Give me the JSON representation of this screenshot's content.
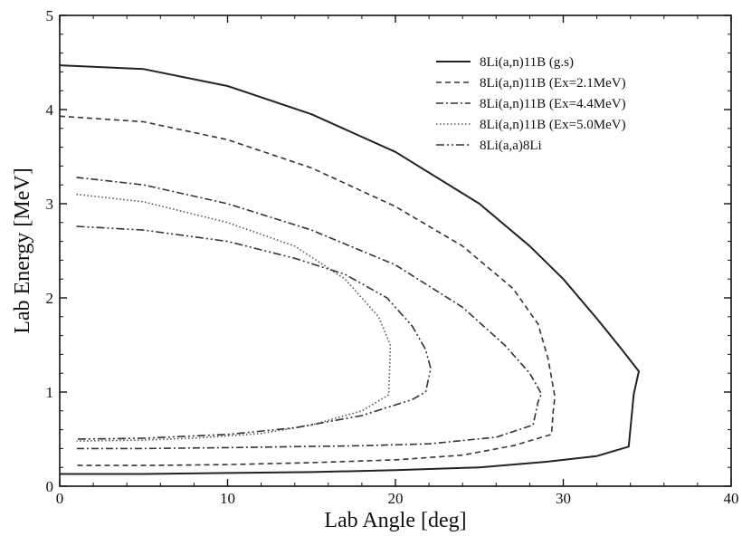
{
  "chart_data": {
    "type": "line",
    "title": "",
    "xlabel": "Lab Angle [deg]",
    "ylabel": "Lab Energy [MeV]",
    "xlim": [
      0,
      40
    ],
    "ylim": [
      0,
      5
    ],
    "xticks": [
      "0",
      "10",
      "20",
      "30",
      "40"
    ],
    "yticks": [
      "0",
      "1",
      "2",
      "3",
      "4",
      "5"
    ],
    "grid": false,
    "legend_position": "top-right",
    "series": [
      {
        "name": "8Li(a,n)11B (g.s)",
        "style": "solid",
        "color": "#222222",
        "points": [
          [
            0,
            4.47
          ],
          [
            5,
            4.43
          ],
          [
            10,
            4.25
          ],
          [
            15,
            3.95
          ],
          [
            20,
            3.55
          ],
          [
            25,
            3.0
          ],
          [
            28,
            2.55
          ],
          [
            30,
            2.2
          ],
          [
            32,
            1.78
          ],
          [
            33.5,
            1.45
          ],
          [
            34.5,
            1.22
          ],
          [
            34.2,
            0.98
          ],
          [
            33.9,
            0.42
          ],
          [
            32,
            0.32
          ],
          [
            29,
            0.26
          ],
          [
            25,
            0.2
          ],
          [
            20,
            0.17
          ],
          [
            15,
            0.15
          ],
          [
            10,
            0.14
          ],
          [
            5,
            0.13
          ],
          [
            0,
            0.13
          ]
        ]
      },
      {
        "name": "8Li(a,n)11B (Ex=2.1MeV)",
        "style": "dashed",
        "color": "#333333",
        "points": [
          [
            0,
            3.93
          ],
          [
            5,
            3.87
          ],
          [
            10,
            3.68
          ],
          [
            15,
            3.38
          ],
          [
            20,
            2.97
          ],
          [
            24,
            2.55
          ],
          [
            27,
            2.1
          ],
          [
            28.5,
            1.72
          ],
          [
            29.1,
            1.35
          ],
          [
            29.5,
            0.95
          ],
          [
            29.4,
            0.8
          ],
          [
            29.3,
            0.55
          ],
          [
            27,
            0.43
          ],
          [
            24,
            0.33
          ],
          [
            20,
            0.28
          ],
          [
            15,
            0.25
          ],
          [
            10,
            0.23
          ],
          [
            5,
            0.22
          ],
          [
            1,
            0.22
          ]
        ]
      },
      {
        "name": "8Li(a,n)11B (Ex=4.4MeV)",
        "style": "dash-dot",
        "color": "#333333",
        "points": [
          [
            1,
            3.28
          ],
          [
            5,
            3.2
          ],
          [
            10,
            3.0
          ],
          [
            15,
            2.72
          ],
          [
            20,
            2.35
          ],
          [
            24,
            1.9
          ],
          [
            26.5,
            1.5
          ],
          [
            28,
            1.2
          ],
          [
            28.7,
            0.98
          ],
          [
            28.5,
            0.9
          ],
          [
            28.2,
            0.65
          ],
          [
            26,
            0.52
          ],
          [
            22,
            0.45
          ],
          [
            18,
            0.43
          ],
          [
            14,
            0.42
          ],
          [
            10,
            0.41
          ],
          [
            5,
            0.4
          ],
          [
            1,
            0.4
          ]
        ]
      },
      {
        "name": "8Li(a,n)11B (Ex=5.0MeV)",
        "style": "dotted",
        "color": "#555555",
        "points": [
          [
            1,
            3.1
          ],
          [
            5,
            3.02
          ],
          [
            10,
            2.8
          ],
          [
            14,
            2.55
          ],
          [
            17,
            2.2
          ],
          [
            19,
            1.8
          ],
          [
            19.7,
            1.5
          ],
          [
            19.6,
            0.97
          ],
          [
            18,
            0.8
          ],
          [
            15,
            0.65
          ],
          [
            12,
            0.56
          ],
          [
            8,
            0.51
          ],
          [
            5,
            0.49
          ],
          [
            1,
            0.48
          ]
        ]
      },
      {
        "name": "8Li(a,a)8Li",
        "style": "dash-dot-dot",
        "color": "#333333",
        "points": [
          [
            1,
            2.76
          ],
          [
            5,
            2.72
          ],
          [
            10,
            2.6
          ],
          [
            14,
            2.42
          ],
          [
            17,
            2.25
          ],
          [
            19.5,
            2.0
          ],
          [
            21,
            1.7
          ],
          [
            21.8,
            1.45
          ],
          [
            22.1,
            1.25
          ],
          [
            21.8,
            1.0
          ],
          [
            21,
            0.92
          ],
          [
            18,
            0.75
          ],
          [
            14,
            0.62
          ],
          [
            10,
            0.55
          ],
          [
            5,
            0.51
          ],
          [
            1,
            0.5
          ]
        ]
      }
    ]
  }
}
